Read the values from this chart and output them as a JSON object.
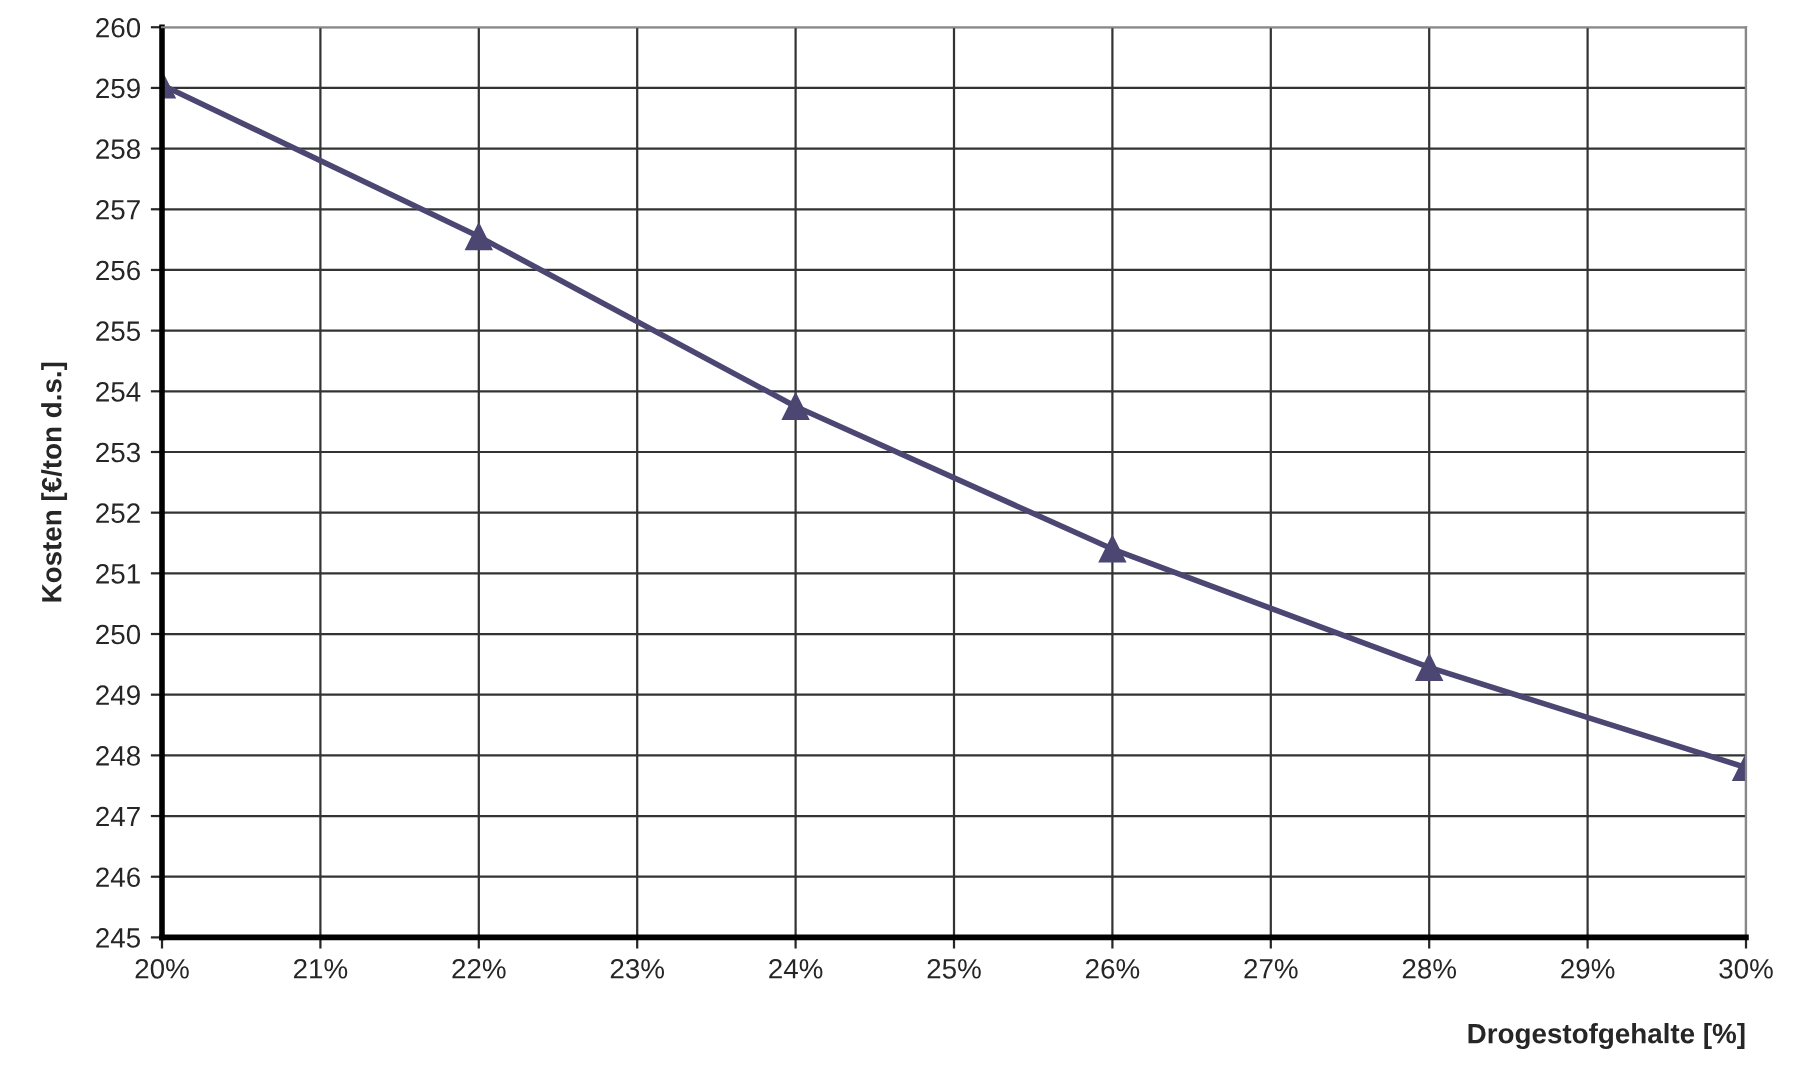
{
  "chart_data": {
    "type": "line",
    "xlabel": "Drogestofgehalte [%]",
    "ylabel": "Kosten [€/ton d.s.]",
    "x": [
      20,
      22,
      24,
      26,
      28,
      30
    ],
    "series": [
      {
        "color": "#4b4672",
        "values": [
          259.05,
          256.55,
          253.75,
          251.4,
          249.45,
          247.8
        ]
      }
    ],
    "xlim": [
      20,
      30
    ],
    "xticks": [
      {
        "value": 20,
        "label": "20%"
      },
      {
        "value": 21,
        "label": "21%"
      },
      {
        "value": 22,
        "label": "22%"
      },
      {
        "value": 23,
        "label": "23%"
      },
      {
        "value": 24,
        "label": "24%"
      },
      {
        "value": 25,
        "label": "25%"
      },
      {
        "value": 26,
        "label": "26%"
      },
      {
        "value": 27,
        "label": "27%"
      },
      {
        "value": 28,
        "label": "28%"
      },
      {
        "value": 29,
        "label": "29%"
      },
      {
        "value": 30,
        "label": "30%"
      }
    ],
    "ylim": [
      245,
      260
    ],
    "yticks": [
      245,
      246,
      247,
      248,
      249,
      250,
      251,
      252,
      253,
      254,
      255,
      256,
      257,
      258,
      259,
      260
    ],
    "grid": true,
    "marker": "triangle",
    "line_style": "solid"
  }
}
